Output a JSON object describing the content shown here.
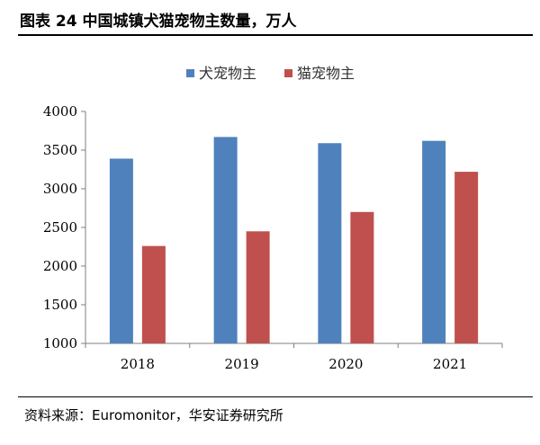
{
  "title": "图表 24 中国城镇犬猫宠物主数量，万人",
  "source": "资料来源：Euromonitor，华安证券研究所",
  "chart_data": {
    "type": "bar",
    "categories": [
      "2018",
      "2019",
      "2020",
      "2021"
    ],
    "series": [
      {
        "name": "犬宠物主",
        "color": "#4f81bd",
        "values": [
          3390,
          3670,
          3590,
          3620
        ]
      },
      {
        "name": "猫宠物主",
        "color": "#c0504d",
        "values": [
          2260,
          2450,
          2700,
          3220
        ]
      }
    ],
    "ylim": [
      1000,
      4000
    ],
    "yticks": [
      1000,
      1500,
      2000,
      2500,
      3000,
      3500,
      4000
    ],
    "grid": false,
    "legend": "top-center"
  }
}
